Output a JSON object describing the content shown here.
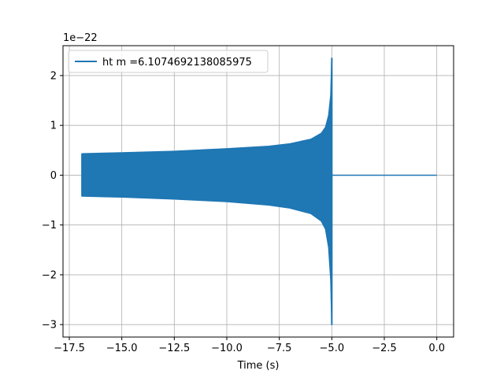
{
  "chart_data": {
    "type": "line",
    "title": "",
    "xlabel": "Time (s)",
    "ylabel": "",
    "y_scale_label": "1e−22",
    "y_scale_factor": 1e-22,
    "xlim": [
      -17.8,
      0.8
    ],
    "ylim": [
      -3.25,
      2.6
    ],
    "x_ticks": [
      -17.5,
      -15.0,
      -12.5,
      -10.0,
      -7.5,
      -5.0,
      -2.5,
      0.0
    ],
    "x_tick_labels": [
      "−17.5",
      "−15.0",
      "−12.5",
      "−10.0",
      "−7.5",
      "−5.0",
      "−2.5",
      "0.0"
    ],
    "y_ticks": [
      -3,
      -2,
      -1,
      0,
      1,
      2
    ],
    "y_tick_labels": [
      "−3",
      "−2",
      "−1",
      "0",
      "1",
      "2"
    ],
    "grid": true,
    "legend": {
      "location": "upper-left",
      "entries": [
        "ht m =6.1074692138085975"
      ]
    },
    "color": "#1f77b4",
    "series": [
      {
        "name": "ht m =6.1074692138085975",
        "envelope_x": [
          -16.9,
          -15.0,
          -12.5,
          -10.0,
          -8.0,
          -7.0,
          -6.0,
          -5.5,
          -5.3,
          -5.15,
          -5.05,
          -5.0
        ],
        "envelope_upper": [
          0.43,
          0.45,
          0.48,
          0.53,
          0.58,
          0.63,
          0.72,
          0.84,
          0.96,
          1.2,
          1.6,
          2.35
        ],
        "envelope_lower": [
          -0.42,
          -0.44,
          -0.48,
          -0.53,
          -0.6,
          -0.66,
          -0.77,
          -0.92,
          -1.08,
          -1.45,
          -2.1,
          -3.0
        ],
        "post_merger_x": [
          -5.0,
          0.0
        ],
        "post_merger_y": [
          0.0,
          0.0
        ]
      }
    ]
  }
}
